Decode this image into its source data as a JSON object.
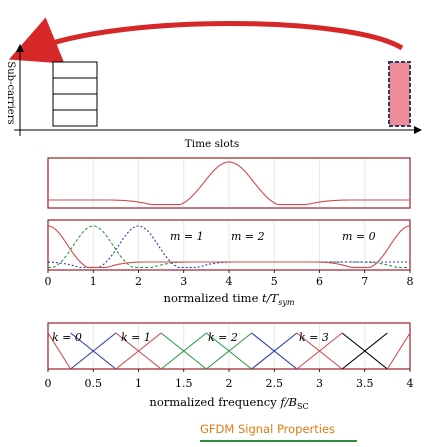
{
  "top_diagram": {
    "y_axis_label": "Sub-carriers",
    "x_axis_label": "Time slots"
  },
  "time_plot": {
    "xlabel": "normalized time",
    "xlabel_math_base": "t/T",
    "xlabel_math_sub": "sym",
    "ticks": [
      "0",
      "1",
      "2",
      "3",
      "4",
      "5",
      "6",
      "7",
      "8"
    ],
    "labels": [
      {
        "text": "m = 1"
      },
      {
        "text": "m = 2"
      },
      {
        "text": "m = 0"
      }
    ]
  },
  "freq_plot": {
    "xlabel": "normalized frequency",
    "xlabel_math_base": "f/B",
    "xlabel_math_sub": "SC",
    "ticks": [
      "0",
      "0.5",
      "1",
      "1.5",
      "2",
      "2.5",
      "3",
      "3.5",
      "4"
    ],
    "labels": [
      {
        "text": "k = 0"
      },
      {
        "text": "k = 1"
      },
      {
        "text": "k = 2"
      },
      {
        "text": "k = 3"
      }
    ]
  },
  "caption": "GFDM Signal Properties",
  "colors": {
    "arrow": "#d62828",
    "highlight_block": "#ee8c98",
    "plot_frame": "#9c1f2a",
    "pulse": "#d14b4b",
    "green": "#2e9a47",
    "blue": "#2b3fae",
    "caption": "#e07a12"
  }
}
